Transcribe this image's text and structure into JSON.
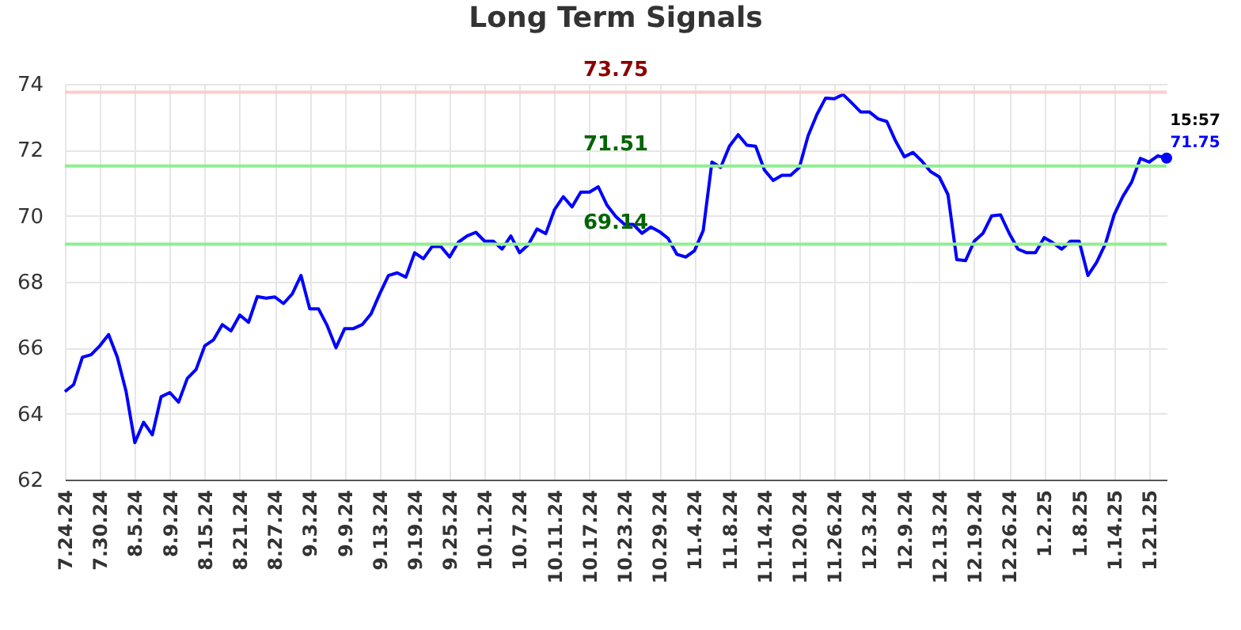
{
  "chart_data": {
    "type": "line",
    "title": "Long Term Signals",
    "categories": [
      "7.24.24",
      null,
      null,
      null,
      "7.30.24",
      null,
      null,
      null,
      "8.5.24",
      null,
      null,
      null,
      "8.9.24",
      null,
      null,
      null,
      "8.15.24",
      null,
      null,
      null,
      "8.21.24",
      null,
      null,
      null,
      "8.27.24",
      null,
      null,
      null,
      "9.3.24",
      null,
      null,
      null,
      "9.9.24",
      null,
      null,
      null,
      "9.13.24",
      null,
      null,
      null,
      "9.19.24",
      null,
      null,
      null,
      "9.25.24",
      null,
      null,
      null,
      "10.1.24",
      null,
      null,
      null,
      "10.7.24",
      null,
      null,
      null,
      "10.11.24",
      null,
      null,
      null,
      "10.17.24",
      null,
      null,
      null,
      "10.23.24",
      null,
      null,
      null,
      "10.29.24",
      null,
      null,
      null,
      "11.4.24",
      null,
      null,
      null,
      "11.8.24",
      null,
      null,
      null,
      "11.14.24",
      null,
      null,
      null,
      "11.20.24",
      null,
      null,
      null,
      "11.26.24",
      null,
      null,
      null,
      "12.3.24",
      null,
      null,
      null,
      "12.9.24",
      null,
      null,
      null,
      "12.13.24",
      null,
      null,
      null,
      "12.19.24",
      null,
      null,
      null,
      "12.26.24",
      null,
      null,
      null,
      "1.2.25",
      null,
      null,
      null,
      "1.8.25",
      null,
      null,
      null,
      "1.14.25",
      null,
      null,
      null,
      "1.21.25",
      null,
      null
    ],
    "series": [
      {
        "color": "#0000ff",
        "values": [
          64.67,
          64.88,
          65.71,
          65.79,
          66.06,
          66.4,
          65.71,
          64.67,
          63.12,
          63.74,
          63.36,
          64.51,
          64.64,
          64.35,
          65.07,
          65.34,
          66.06,
          66.24,
          66.7,
          66.51,
          66.99,
          66.77,
          67.55,
          67.5,
          67.54,
          67.34,
          67.63,
          68.19,
          67.18,
          67.18,
          66.67,
          66.0,
          66.58,
          66.58,
          66.7,
          67.02,
          67.63,
          68.19,
          68.27,
          68.14,
          68.88,
          68.7,
          69.07,
          69.07,
          68.75,
          69.2,
          69.39,
          69.5,
          69.23,
          69.23,
          68.99,
          69.39,
          68.88,
          69.12,
          69.6,
          69.46,
          70.19,
          70.58,
          70.27,
          70.72,
          70.72,
          70.88,
          70.32,
          69.98,
          69.74,
          69.74,
          69.47,
          69.66,
          69.52,
          69.31,
          68.83,
          68.75,
          68.94,
          69.55,
          71.63,
          71.47,
          72.11,
          72.46,
          72.14,
          72.11,
          71.39,
          71.07,
          71.23,
          71.23,
          71.47,
          72.43,
          73.07,
          73.57,
          73.55,
          73.68,
          73.42,
          73.15,
          73.15,
          72.94,
          72.86,
          72.27,
          71.79,
          71.92,
          71.66,
          71.34,
          71.18,
          70.64,
          68.67,
          68.64,
          69.23,
          69.47,
          70.0,
          70.03,
          69.47,
          68.99,
          68.88,
          68.88,
          69.34,
          69.18,
          68.99,
          69.23,
          69.23,
          68.19,
          68.59,
          69.15,
          70.03,
          70.59,
          71.02,
          71.74,
          71.63,
          71.82,
          71.75
        ]
      }
    ],
    "ylim": [
      62,
      74
    ],
    "yticks": [
      62,
      64,
      66,
      68,
      70,
      72,
      74
    ],
    "grid": true,
    "marker": "none",
    "line_style": "solid",
    "ref_lines": [
      {
        "axis": "y",
        "value": 73.75,
        "label": "73.75",
        "color": "#ffcccc"
      },
      {
        "axis": "y",
        "value": 71.51,
        "label": "71.51",
        "color": "#90ee90"
      },
      {
        "axis": "y",
        "value": 69.14,
        "label": "69.14",
        "color": "#90ee90"
      }
    ],
    "annotations": [
      "15:57",
      "71.75"
    ]
  }
}
